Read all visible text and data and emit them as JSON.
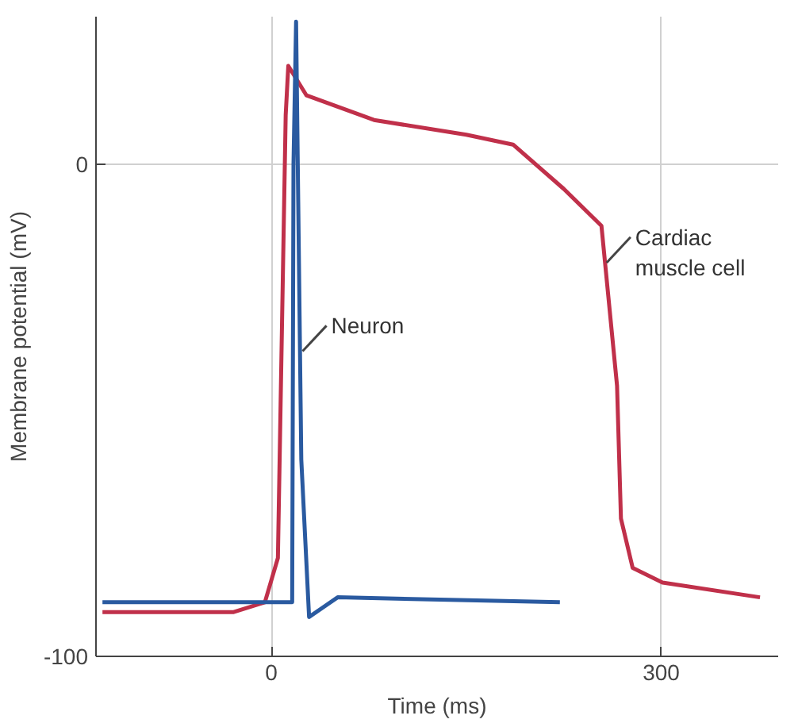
{
  "chart_data": {
    "type": "line",
    "xlabel": "Time (ms)",
    "ylabel": "Membrane potential (mV)",
    "xlim": [
      -135,
      390
    ],
    "ylim": [
      -100,
      30
    ],
    "xticks": [
      0,
      300
    ],
    "yticks": [
      0,
      -100
    ],
    "grid": true,
    "line_style": "solid",
    "series": [
      {
        "color": "#c0304a",
        "x": [
          -130,
          -29,
          -5,
          5,
          11,
          13,
          27,
          79,
          150,
          186,
          225,
          254,
          266,
          269,
          278,
          301,
          376
        ],
        "values": [
          -91,
          -91,
          -89,
          -80,
          10,
          20,
          14,
          9,
          6,
          4,
          -5,
          -12.5,
          -45,
          -72,
          -82,
          -85,
          -88
        ]
      },
      {
        "color": "#2a5aa0",
        "x": [
          -130,
          16,
          17,
          19,
          23,
          29,
          51,
          222
        ],
        "values": [
          -89,
          -89,
          0,
          29,
          -60,
          -92,
          -88,
          -89
        ]
      }
    ],
    "annotations": [
      {
        "text": "Neuron",
        "x": 24,
        "y": -38
      },
      {
        "text": "Cardiac muscle cell",
        "x": 258,
        "y": -20
      }
    ]
  }
}
